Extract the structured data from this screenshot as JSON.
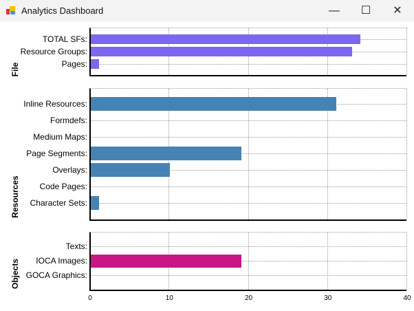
{
  "window": {
    "title": "Analytics Dashboard",
    "minimize": "—",
    "maximize": "☐",
    "close": "✕"
  },
  "chart_data": {
    "type": "bar",
    "orientation": "horizontal",
    "xlim": [
      0,
      40
    ],
    "xticks": [
      "0",
      "10",
      "20",
      "30",
      "40"
    ],
    "grid": true,
    "groups": [
      {
        "name": "File",
        "color": "#7b68ee",
        "categories": [
          "TOTAL SFs:",
          "Resource Groups:",
          "Pages:"
        ],
        "values": [
          34,
          33,
          1
        ]
      },
      {
        "name": "Resources",
        "color": "#4682b4",
        "categories": [
          "Inline Resources:",
          "Formdefs:",
          "Medium Maps:",
          "Page Segments:",
          "Overlays:",
          "Code Pages:",
          "Character Sets:"
        ],
        "values": [
          31,
          0,
          0,
          19,
          10,
          0,
          1
        ]
      },
      {
        "name": "Objects",
        "color": "#c71585",
        "categories": [
          "Texts:",
          "IOCA Images:",
          "GOCA Graphics:"
        ],
        "values": [
          0,
          19,
          0
        ]
      }
    ]
  }
}
